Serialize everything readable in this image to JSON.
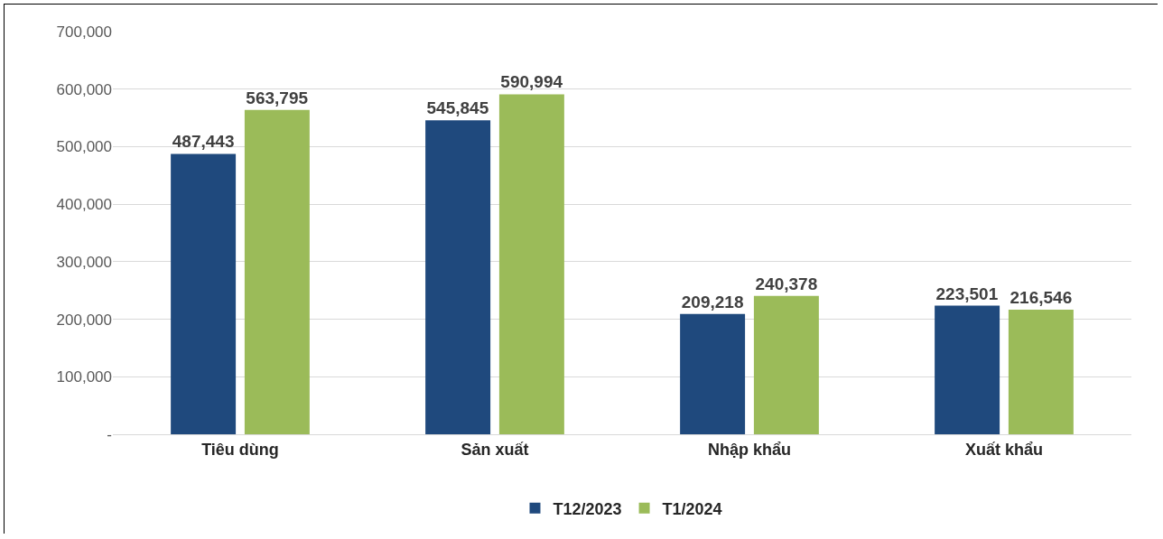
{
  "chart_data": {
    "type": "bar",
    "categories": [
      "Tiêu dùng",
      "Sản xuất",
      "Nhập khẩu",
      "Xuất khẩu"
    ],
    "series": [
      {
        "name": "T12/2023",
        "color": "#1f497d",
        "values": [
          487443,
          545845,
          209218,
          223501
        ],
        "value_labels": [
          "487,443",
          "545,845",
          "209,218",
          "223,501"
        ]
      },
      {
        "name": "T1/2024",
        "color": "#9bbb59",
        "values": [
          563795,
          590994,
          240378,
          216546
        ],
        "value_labels": [
          "563,795",
          "590,994",
          "240,378",
          "216,546"
        ]
      }
    ],
    "ylim": [
      0,
      700000
    ],
    "yticks": [
      {
        "value": 0,
        "label": "-"
      },
      {
        "value": 100000,
        "label": "100,000"
      },
      {
        "value": 200000,
        "label": "200,000"
      },
      {
        "value": 300000,
        "label": "300,000"
      },
      {
        "value": 400000,
        "label": "400,000"
      },
      {
        "value": 500000,
        "label": "500,000"
      },
      {
        "value": 600000,
        "label": "600,000"
      },
      {
        "value": 700000,
        "label": "700,000"
      }
    ],
    "grid": "y",
    "legend": "bottom"
  }
}
